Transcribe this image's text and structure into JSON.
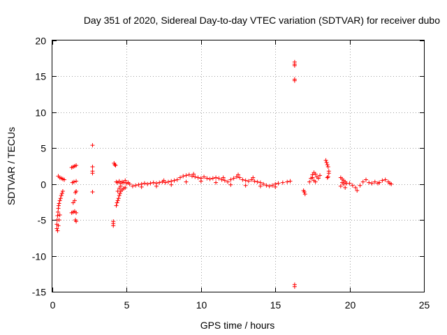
{
  "chart_data": {
    "type": "scatter",
    "title": "Day 351 of 2020, Sidereal Day-to-day VTEC variation (SDTVAR) for receiver dubo",
    "xlabel": "GPS time / hours",
    "ylabel": "SDTVAR / TECUs",
    "xlim": [
      0,
      25
    ],
    "ylim": [
      -15,
      20
    ],
    "xticks": [
      "0",
      "5",
      "10",
      "15",
      "20",
      "25"
    ],
    "yticks": [
      "-15",
      "-10",
      "-5",
      "0",
      "5",
      "10",
      "15",
      "20"
    ],
    "grid": true,
    "marker": "+",
    "color": "#ff0000",
    "series": [
      {
        "name": "SDTVAR",
        "points": [
          [
            0.3,
            -6.2
          ],
          [
            0.3,
            -5.6
          ],
          [
            0.32,
            -5.0
          ],
          [
            0.35,
            -4.4
          ],
          [
            0.38,
            -3.9
          ],
          [
            0.4,
            -3.4
          ],
          [
            0.42,
            -3.0
          ],
          [
            0.45,
            -2.7
          ],
          [
            0.5,
            -2.3
          ],
          [
            0.55,
            -2.0
          ],
          [
            0.6,
            -1.6
          ],
          [
            0.65,
            -1.3
          ],
          [
            0.7,
            -1.0
          ],
          [
            0.4,
            -5.8
          ],
          [
            0.45,
            -5.0
          ],
          [
            0.5,
            -4.3
          ],
          [
            0.35,
            -6.5
          ],
          [
            0.4,
            1.1
          ],
          [
            0.5,
            0.9
          ],
          [
            0.6,
            0.8
          ],
          [
            0.7,
            0.7
          ],
          [
            0.8,
            0.6
          ],
          [
            1.3,
            -4.0
          ],
          [
            1.4,
            -3.9
          ],
          [
            1.5,
            -3.8
          ],
          [
            1.6,
            -4.0
          ],
          [
            1.55,
            -5.0
          ],
          [
            1.6,
            -5.2
          ],
          [
            1.4,
            -2.6
          ],
          [
            1.5,
            -2.3
          ],
          [
            1.55,
            -1.2
          ],
          [
            1.6,
            -1.0
          ],
          [
            1.35,
            0.2
          ],
          [
            1.45,
            0.3
          ],
          [
            1.6,
            0.4
          ],
          [
            1.3,
            2.3
          ],
          [
            1.4,
            2.4
          ],
          [
            1.5,
            2.5
          ],
          [
            1.6,
            2.6
          ],
          [
            2.7,
            5.4
          ],
          [
            2.7,
            2.4
          ],
          [
            2.7,
            1.8
          ],
          [
            2.7,
            1.5
          ],
          [
            2.7,
            -1.1
          ],
          [
            4.1,
            -5.2
          ],
          [
            4.1,
            -5.5
          ],
          [
            4.1,
            -5.8
          ],
          [
            4.15,
            2.9
          ],
          [
            4.2,
            2.7
          ],
          [
            4.25,
            2.6
          ],
          [
            4.3,
            -3.0
          ],
          [
            4.35,
            -2.6
          ],
          [
            4.4,
            -2.3
          ],
          [
            4.45,
            -2.0
          ],
          [
            4.5,
            -1.6
          ],
          [
            4.55,
            -1.3
          ],
          [
            4.6,
            -1.0
          ],
          [
            4.7,
            -0.8
          ],
          [
            4.8,
            -0.6
          ],
          [
            4.9,
            -0.5
          ],
          [
            4.4,
            -1.0
          ],
          [
            4.5,
            -0.6
          ],
          [
            4.6,
            -0.3
          ],
          [
            4.3,
            0.3
          ],
          [
            4.4,
            0.2
          ],
          [
            4.5,
            0.4
          ],
          [
            4.6,
            0.1
          ],
          [
            4.7,
            0.3
          ],
          [
            4.8,
            0.2
          ],
          [
            4.9,
            0.5
          ],
          [
            5.0,
            0.1
          ],
          [
            5.1,
            0.2
          ],
          [
            5.2,
            0.0
          ],
          [
            5.4,
            -0.3
          ],
          [
            5.6,
            -0.2
          ],
          [
            5.8,
            -0.1
          ],
          [
            6.0,
            0.0
          ],
          [
            6.2,
            0.1
          ],
          [
            6.4,
            0.0
          ],
          [
            6.6,
            0.1
          ],
          [
            6.8,
            0.2
          ],
          [
            7.0,
            0.1
          ],
          [
            7.2,
            0.2
          ],
          [
            7.4,
            0.3
          ],
          [
            7.6,
            0.2
          ],
          [
            7.8,
            0.3
          ],
          [
            8.0,
            0.4
          ],
          [
            8.2,
            0.5
          ],
          [
            8.4,
            0.6
          ],
          [
            8.6,
            0.9
          ],
          [
            8.8,
            1.1
          ],
          [
            9.0,
            1.2
          ],
          [
            9.2,
            1.3
          ],
          [
            9.4,
            1.1
          ],
          [
            9.6,
            1.0
          ],
          [
            9.8,
            0.9
          ],
          [
            10.0,
            0.8
          ],
          [
            10.2,
            1.0
          ],
          [
            10.4,
            0.8
          ],
          [
            10.6,
            0.7
          ],
          [
            10.8,
            0.8
          ],
          [
            11.0,
            0.9
          ],
          [
            11.2,
            0.8
          ],
          [
            11.4,
            0.6
          ],
          [
            11.6,
            0.5
          ],
          [
            11.8,
            0.3
          ],
          [
            12.0,
            0.6
          ],
          [
            12.2,
            0.8
          ],
          [
            12.4,
            1.0
          ],
          [
            12.6,
            0.9
          ],
          [
            12.8,
            0.6
          ],
          [
            13.0,
            0.5
          ],
          [
            13.2,
            0.4
          ],
          [
            13.4,
            0.6
          ],
          [
            13.6,
            0.4
          ],
          [
            13.8,
            0.3
          ],
          [
            14.0,
            0.2
          ],
          [
            14.2,
            0.0
          ],
          [
            14.4,
            -0.2
          ],
          [
            14.6,
            -0.3
          ],
          [
            14.8,
            -0.2
          ],
          [
            15.0,
            0.0
          ],
          [
            15.2,
            0.1
          ],
          [
            15.5,
            0.2
          ],
          [
            15.8,
            0.3
          ],
          [
            16.0,
            0.4
          ],
          [
            6.0,
            -0.4
          ],
          [
            7.0,
            -0.3
          ],
          [
            8.0,
            -0.1
          ],
          [
            9.0,
            0.3
          ],
          [
            10.0,
            0.4
          ],
          [
            11.0,
            0.2
          ],
          [
            12.0,
            -0.1
          ],
          [
            13.0,
            -0.2
          ],
          [
            14.0,
            -0.3
          ],
          [
            15.0,
            -0.4
          ],
          [
            7.5,
            0.5
          ],
          [
            9.5,
            1.4
          ],
          [
            11.5,
            0.9
          ],
          [
            12.5,
            1.3
          ],
          [
            13.5,
            0.9
          ],
          [
            16.3,
            17.0
          ],
          [
            16.3,
            16.7
          ],
          [
            16.3,
            16.5
          ],
          [
            16.3,
            14.6
          ],
          [
            16.3,
            14.4
          ],
          [
            16.3,
            -14.0
          ],
          [
            16.3,
            -14.3
          ],
          [
            16.9,
            -0.9
          ],
          [
            16.95,
            -1.1
          ],
          [
            17.0,
            -1.4
          ],
          [
            17.3,
            0.3
          ],
          [
            17.4,
            0.8
          ],
          [
            17.5,
            1.3
          ],
          [
            17.6,
            1.6
          ],
          [
            17.7,
            1.4
          ],
          [
            17.8,
            1.0
          ],
          [
            17.9,
            0.8
          ],
          [
            18.0,
            1.2
          ],
          [
            17.5,
            0.9
          ],
          [
            17.6,
            0.5
          ],
          [
            17.7,
            0.3
          ],
          [
            18.4,
            3.3
          ],
          [
            18.45,
            3.0
          ],
          [
            18.5,
            2.7
          ],
          [
            18.55,
            2.4
          ],
          [
            18.6,
            1.8
          ],
          [
            18.6,
            1.5
          ],
          [
            18.5,
            0.9
          ],
          [
            18.55,
            1.0
          ],
          [
            19.4,
            0.9
          ],
          [
            19.5,
            0.7
          ],
          [
            19.6,
            0.5
          ],
          [
            19.7,
            0.3
          ],
          [
            19.8,
            0.1
          ],
          [
            19.4,
            -0.3
          ],
          [
            19.5,
            0.2
          ],
          [
            19.6,
            0.0
          ],
          [
            19.7,
            -0.5
          ],
          [
            20.0,
            0.1
          ],
          [
            20.2,
            -0.2
          ],
          [
            20.4,
            -0.5
          ],
          [
            20.5,
            -0.9
          ],
          [
            20.7,
            -0.2
          ],
          [
            20.9,
            0.3
          ],
          [
            21.1,
            0.6
          ],
          [
            21.3,
            0.2
          ],
          [
            21.5,
            0.1
          ],
          [
            21.7,
            0.3
          ],
          [
            21.9,
            0.1
          ],
          [
            22.0,
            0.2
          ],
          [
            22.2,
            0.5
          ],
          [
            22.4,
            0.6
          ],
          [
            22.6,
            0.3
          ],
          [
            22.7,
            0.1
          ],
          [
            22.8,
            0.0
          ]
        ]
      }
    ]
  }
}
